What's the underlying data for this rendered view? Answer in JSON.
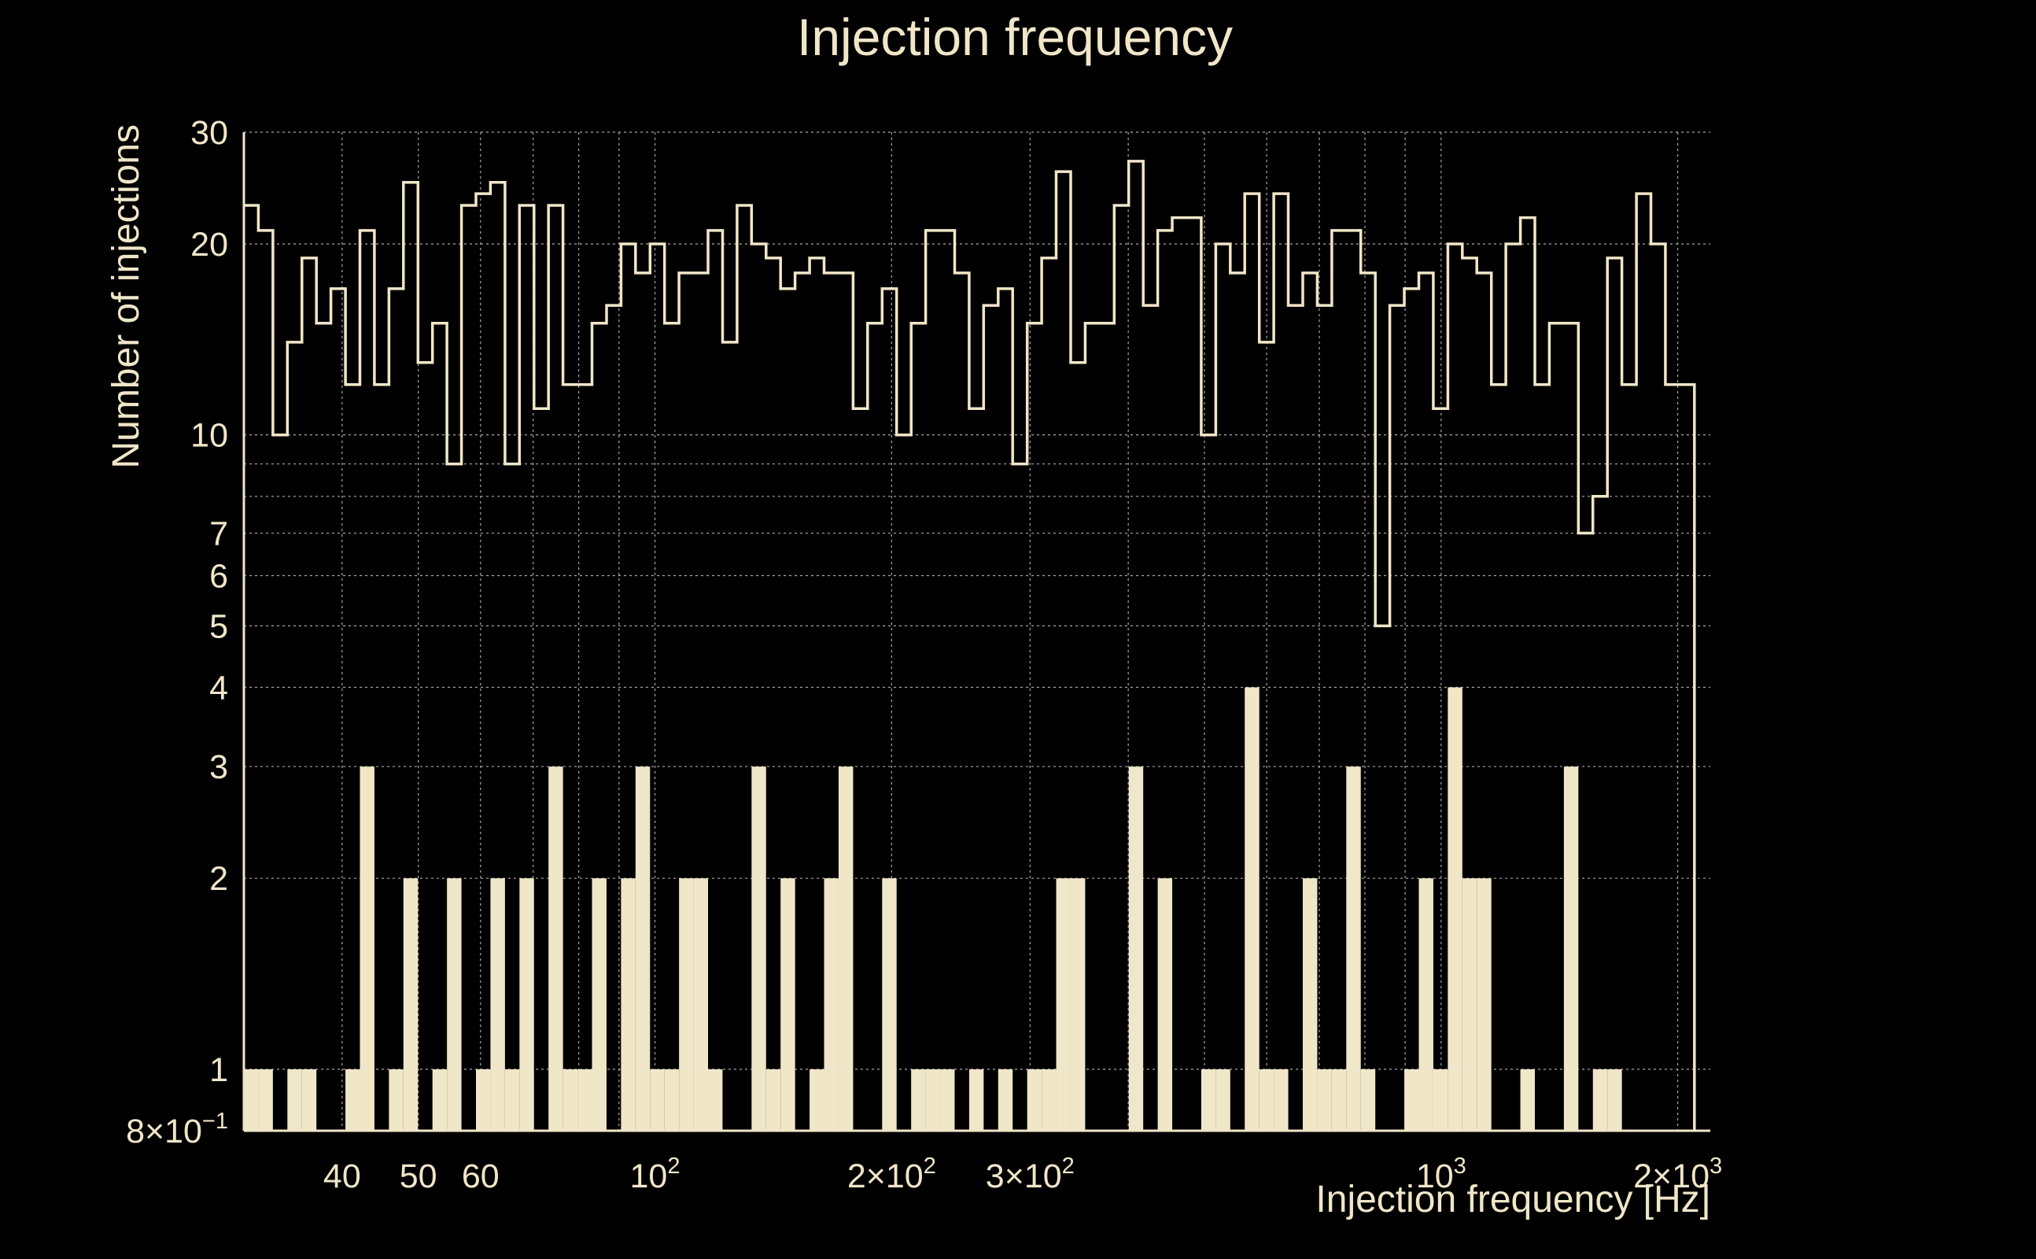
{
  "chart_data": {
    "type": "bar",
    "title": "Injection frequency",
    "xlabel": "Injection frequency [Hz]",
    "ylabel": "Number of injections",
    "xscale": "log",
    "yscale": "log",
    "xlim": [
      30,
      2200
    ],
    "ylim": [
      0.8,
      30
    ],
    "grid": true,
    "colors": {
      "background": "#000000",
      "foreground": "#f0e6c8",
      "grid": "#a8a8a8"
    },
    "x_ticks": [
      {
        "label": "40",
        "value": 40
      },
      {
        "label": "50",
        "value": 50
      },
      {
        "label": "60",
        "value": 60
      },
      {
        "label": "10",
        "sup": "2",
        "value": 100
      },
      {
        "label": "2×10",
        "sup": "2",
        "value": 200
      },
      {
        "label": "3×10",
        "sup": "2",
        "value": 300
      },
      {
        "label": "10",
        "sup": "3",
        "value": 1000
      },
      {
        "label": "2×10",
        "sup": "3",
        "value": 2000
      }
    ],
    "y_ticks": [
      {
        "label": "8×10",
        "sup": "−1",
        "value": 0.8
      },
      {
        "label": "1",
        "value": 1
      },
      {
        "label": "2",
        "value": 2
      },
      {
        "label": "3",
        "value": 3
      },
      {
        "label": "4",
        "value": 4
      },
      {
        "label": "5",
        "value": 5
      },
      {
        "label": "6",
        "value": 6
      },
      {
        "label": "7",
        "value": 7
      },
      {
        "label": "10",
        "value": 10
      },
      {
        "label": "20",
        "value": 20
      },
      {
        "label": "30",
        "value": 30
      }
    ],
    "x_minor_grid": [
      30,
      70,
      80,
      90,
      400,
      500,
      600,
      700,
      800,
      900
    ],
    "y_minor_grid": [
      8,
      9
    ],
    "bin_log_range": [
      30,
      2100
    ],
    "series": [
      {
        "style": "step-outline",
        "values": [
          23,
          21,
          10,
          14,
          19,
          15,
          17,
          12,
          21,
          12,
          17,
          25,
          13,
          15,
          9,
          23,
          24,
          25,
          9,
          23,
          11,
          23,
          12,
          12,
          15,
          16,
          20,
          18,
          20,
          15,
          18,
          18,
          21,
          14,
          23,
          20,
          19,
          17,
          18,
          19,
          18,
          18,
          11,
          15,
          17,
          10,
          15,
          21,
          21,
          18,
          11,
          16,
          17,
          9,
          15,
          19,
          26,
          13,
          15,
          15,
          23,
          27,
          16,
          21,
          22,
          22,
          10,
          20,
          18,
          24,
          14,
          24,
          16,
          18,
          16,
          21,
          21,
          18,
          5,
          16,
          17,
          18,
          11,
          20,
          19,
          18,
          12,
          20,
          22,
          12,
          15,
          15,
          7,
          8,
          19,
          12,
          24,
          20,
          12,
          12
        ]
      },
      {
        "style": "filled-bars",
        "values": [
          1,
          1,
          0,
          1,
          1,
          0,
          0,
          1,
          3,
          0,
          1,
          2,
          0,
          1,
          2,
          0,
          1,
          2,
          1,
          2,
          0,
          3,
          1,
          1,
          2,
          0,
          2,
          3,
          1,
          1,
          2,
          2,
          1,
          0,
          0,
          3,
          1,
          2,
          0,
          1,
          2,
          3,
          0,
          0,
          2,
          0,
          1,
          1,
          1,
          0,
          1,
          0,
          1,
          0,
          1,
          1,
          2,
          2,
          0,
          0,
          0,
          3,
          0,
          2,
          0,
          0,
          1,
          1,
          0,
          4,
          1,
          1,
          0,
          2,
          1,
          1,
          3,
          1,
          0,
          0,
          1,
          2,
          1,
          4,
          2,
          2,
          0,
          0,
          1,
          0,
          0,
          3,
          0,
          1,
          1,
          0,
          0,
          0,
          0,
          0
        ]
      }
    ]
  }
}
